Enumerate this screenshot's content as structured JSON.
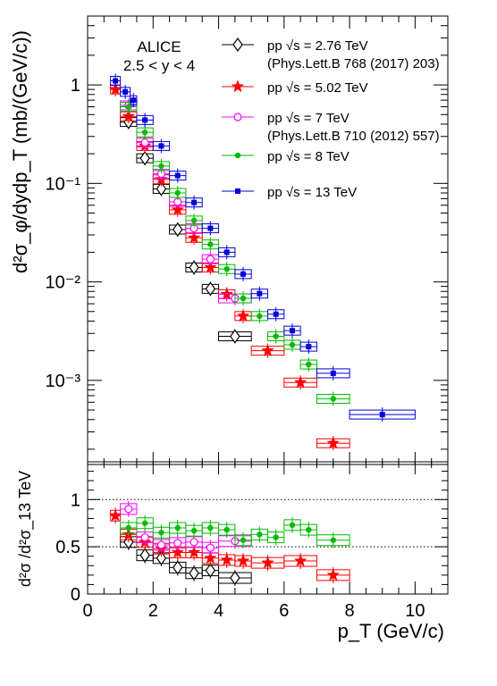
{
  "chart_data": [
    {
      "type": "scatter",
      "panel": "upper",
      "ylabel": "d²σ_φ/dydp_T (mb/(GeV/c))",
      "yscale": "log",
      "ylim": [
        0.00014,
        5
      ],
      "xlim": [
        0,
        11
      ],
      "ytick_labels": [
        "10⁻³",
        "10⁻²",
        "10⁻¹",
        "1"
      ],
      "annotation": [
        "ALICE",
        "2.5 < y < 4"
      ],
      "legend_position": "top-right",
      "series": [
        {
          "name": "pp √s = 2.76 TeV",
          "reference": "(Phys.Lett.B 768 (2017) 203)",
          "color": "#000000",
          "marker": "open-diamond",
          "x": [
            1.25,
            1.75,
            2.25,
            2.75,
            3.25,
            3.75,
            4.5
          ],
          "xerr": [
            0.25,
            0.25,
            0.25,
            0.25,
            0.25,
            0.25,
            0.5
          ],
          "y": [
            0.42,
            0.18,
            0.088,
            0.034,
            0.014,
            0.0085,
            0.0028
          ]
        },
        {
          "name": "pp √s = 5.02 TeV",
          "color": "#ff0000",
          "marker": "star",
          "x": [
            0.85,
            1.25,
            1.75,
            2.25,
            2.75,
            3.25,
            3.75,
            4.25,
            4.75,
            5.5,
            6.5,
            7.5
          ],
          "xerr": [
            0.15,
            0.25,
            0.25,
            0.25,
            0.25,
            0.25,
            0.25,
            0.25,
            0.25,
            0.5,
            0.5,
            0.5
          ],
          "y": [
            0.9,
            0.48,
            0.24,
            0.11,
            0.054,
            0.028,
            0.014,
            0.0075,
            0.0045,
            0.002,
            0.00095,
            0.00023
          ]
        },
        {
          "name": "pp √s = 7 TeV",
          "reference": "(Phys.Lett.B 710 (2012) 557)",
          "color": "#ff00ff",
          "marker": "open-circle",
          "x": [
            1.25,
            1.75,
            2.25,
            2.75,
            3.25,
            3.75,
            4.5
          ],
          "xerr": [
            0.25,
            0.25,
            0.25,
            0.25,
            0.25,
            0.25,
            0.5
          ],
          "y": [
            0.62,
            0.26,
            0.125,
            0.065,
            0.035,
            0.017,
            0.0068
          ]
        },
        {
          "name": "pp √s = 8 TeV",
          "color": "#00bb00",
          "marker": "filled-circle",
          "x": [
            1.25,
            1.75,
            2.25,
            2.75,
            3.25,
            3.75,
            4.25,
            4.75,
            5.25,
            5.75,
            6.25,
            6.75,
            7.5
          ],
          "xerr": [
            0.25,
            0.25,
            0.25,
            0.25,
            0.25,
            0.25,
            0.25,
            0.25,
            0.25,
            0.25,
            0.25,
            0.25,
            0.5
          ],
          "y": [
            0.6,
            0.33,
            0.15,
            0.08,
            0.042,
            0.024,
            0.0135,
            0.0068,
            0.0045,
            0.0028,
            0.0023,
            0.00145,
            0.00065
          ]
        },
        {
          "name": "pp √s = 13 TeV",
          "color": "#0000dd",
          "marker": "filled-square",
          "x": [
            0.85,
            1.15,
            1.4,
            1.75,
            2.25,
            2.75,
            3.25,
            3.75,
            4.25,
            4.75,
            5.25,
            5.75,
            6.25,
            6.75,
            7.5,
            9.0
          ],
          "xerr": [
            0.15,
            0.15,
            0.1,
            0.25,
            0.25,
            0.25,
            0.25,
            0.25,
            0.25,
            0.25,
            0.25,
            0.25,
            0.25,
            0.25,
            0.5,
            1.0
          ],
          "y": [
            1.1,
            0.85,
            0.7,
            0.44,
            0.24,
            0.12,
            0.064,
            0.035,
            0.02,
            0.012,
            0.0076,
            0.0047,
            0.0032,
            0.0022,
            0.00118,
            0.00045
          ]
        }
      ]
    },
    {
      "type": "scatter",
      "panel": "lower",
      "xlabel": "p_T (GeV/c)",
      "ylabel": "d²σ /d²σ_13 TeV",
      "xlim": [
        0,
        11
      ],
      "ylim": [
        0,
        1.4
      ],
      "xtick_labels": [
        "0",
        "2",
        "4",
        "6",
        "8",
        "10"
      ],
      "ytick_labels": [
        "0",
        "0.5",
        "1"
      ],
      "reference_lines": [
        1,
        0.5
      ],
      "series": [
        {
          "name": "pp √s = 2.76 TeV",
          "color": "#000000",
          "marker": "open-diamond",
          "x": [
            1.25,
            1.75,
            2.25,
            2.75,
            3.25,
            3.75,
            4.5
          ],
          "xerr": [
            0.25,
            0.25,
            0.25,
            0.25,
            0.25,
            0.25,
            0.5
          ],
          "y": [
            0.55,
            0.41,
            0.38,
            0.28,
            0.22,
            0.25,
            0.17
          ]
        },
        {
          "name": "pp √s = 5.02 TeV",
          "color": "#ff0000",
          "marker": "star",
          "x": [
            0.85,
            1.25,
            1.75,
            2.25,
            2.75,
            3.25,
            3.75,
            4.25,
            4.75,
            5.5,
            6.5,
            7.5
          ],
          "xerr": [
            0.15,
            0.25,
            0.25,
            0.25,
            0.25,
            0.25,
            0.25,
            0.25,
            0.25,
            0.5,
            0.5,
            0.5
          ],
          "y": [
            0.83,
            0.63,
            0.55,
            0.48,
            0.44,
            0.44,
            0.38,
            0.36,
            0.35,
            0.33,
            0.35,
            0.2
          ]
        },
        {
          "name": "pp √s = 7 TeV",
          "color": "#ff00ff",
          "marker": "open-circle",
          "x": [
            1.25,
            1.75,
            2.25,
            2.75,
            3.25,
            3.75,
            4.5
          ],
          "xerr": [
            0.25,
            0.25,
            0.25,
            0.25,
            0.25,
            0.25,
            0.5
          ],
          "y": [
            0.9,
            0.6,
            0.52,
            0.54,
            0.55,
            0.49,
            0.56
          ]
        },
        {
          "name": "pp √s = 8 TeV",
          "color": "#00bb00",
          "marker": "filled-circle",
          "x": [
            1.25,
            1.75,
            2.25,
            2.75,
            3.25,
            3.75,
            4.25,
            4.75,
            5.25,
            5.75,
            6.25,
            6.75,
            7.5
          ],
          "xerr": [
            0.25,
            0.25,
            0.25,
            0.25,
            0.25,
            0.25,
            0.25,
            0.25,
            0.25,
            0.25,
            0.25,
            0.25,
            0.5
          ],
          "y": [
            0.7,
            0.75,
            0.65,
            0.7,
            0.67,
            0.7,
            0.68,
            0.57,
            0.63,
            0.6,
            0.73,
            0.68,
            0.57
          ]
        }
      ]
    }
  ]
}
